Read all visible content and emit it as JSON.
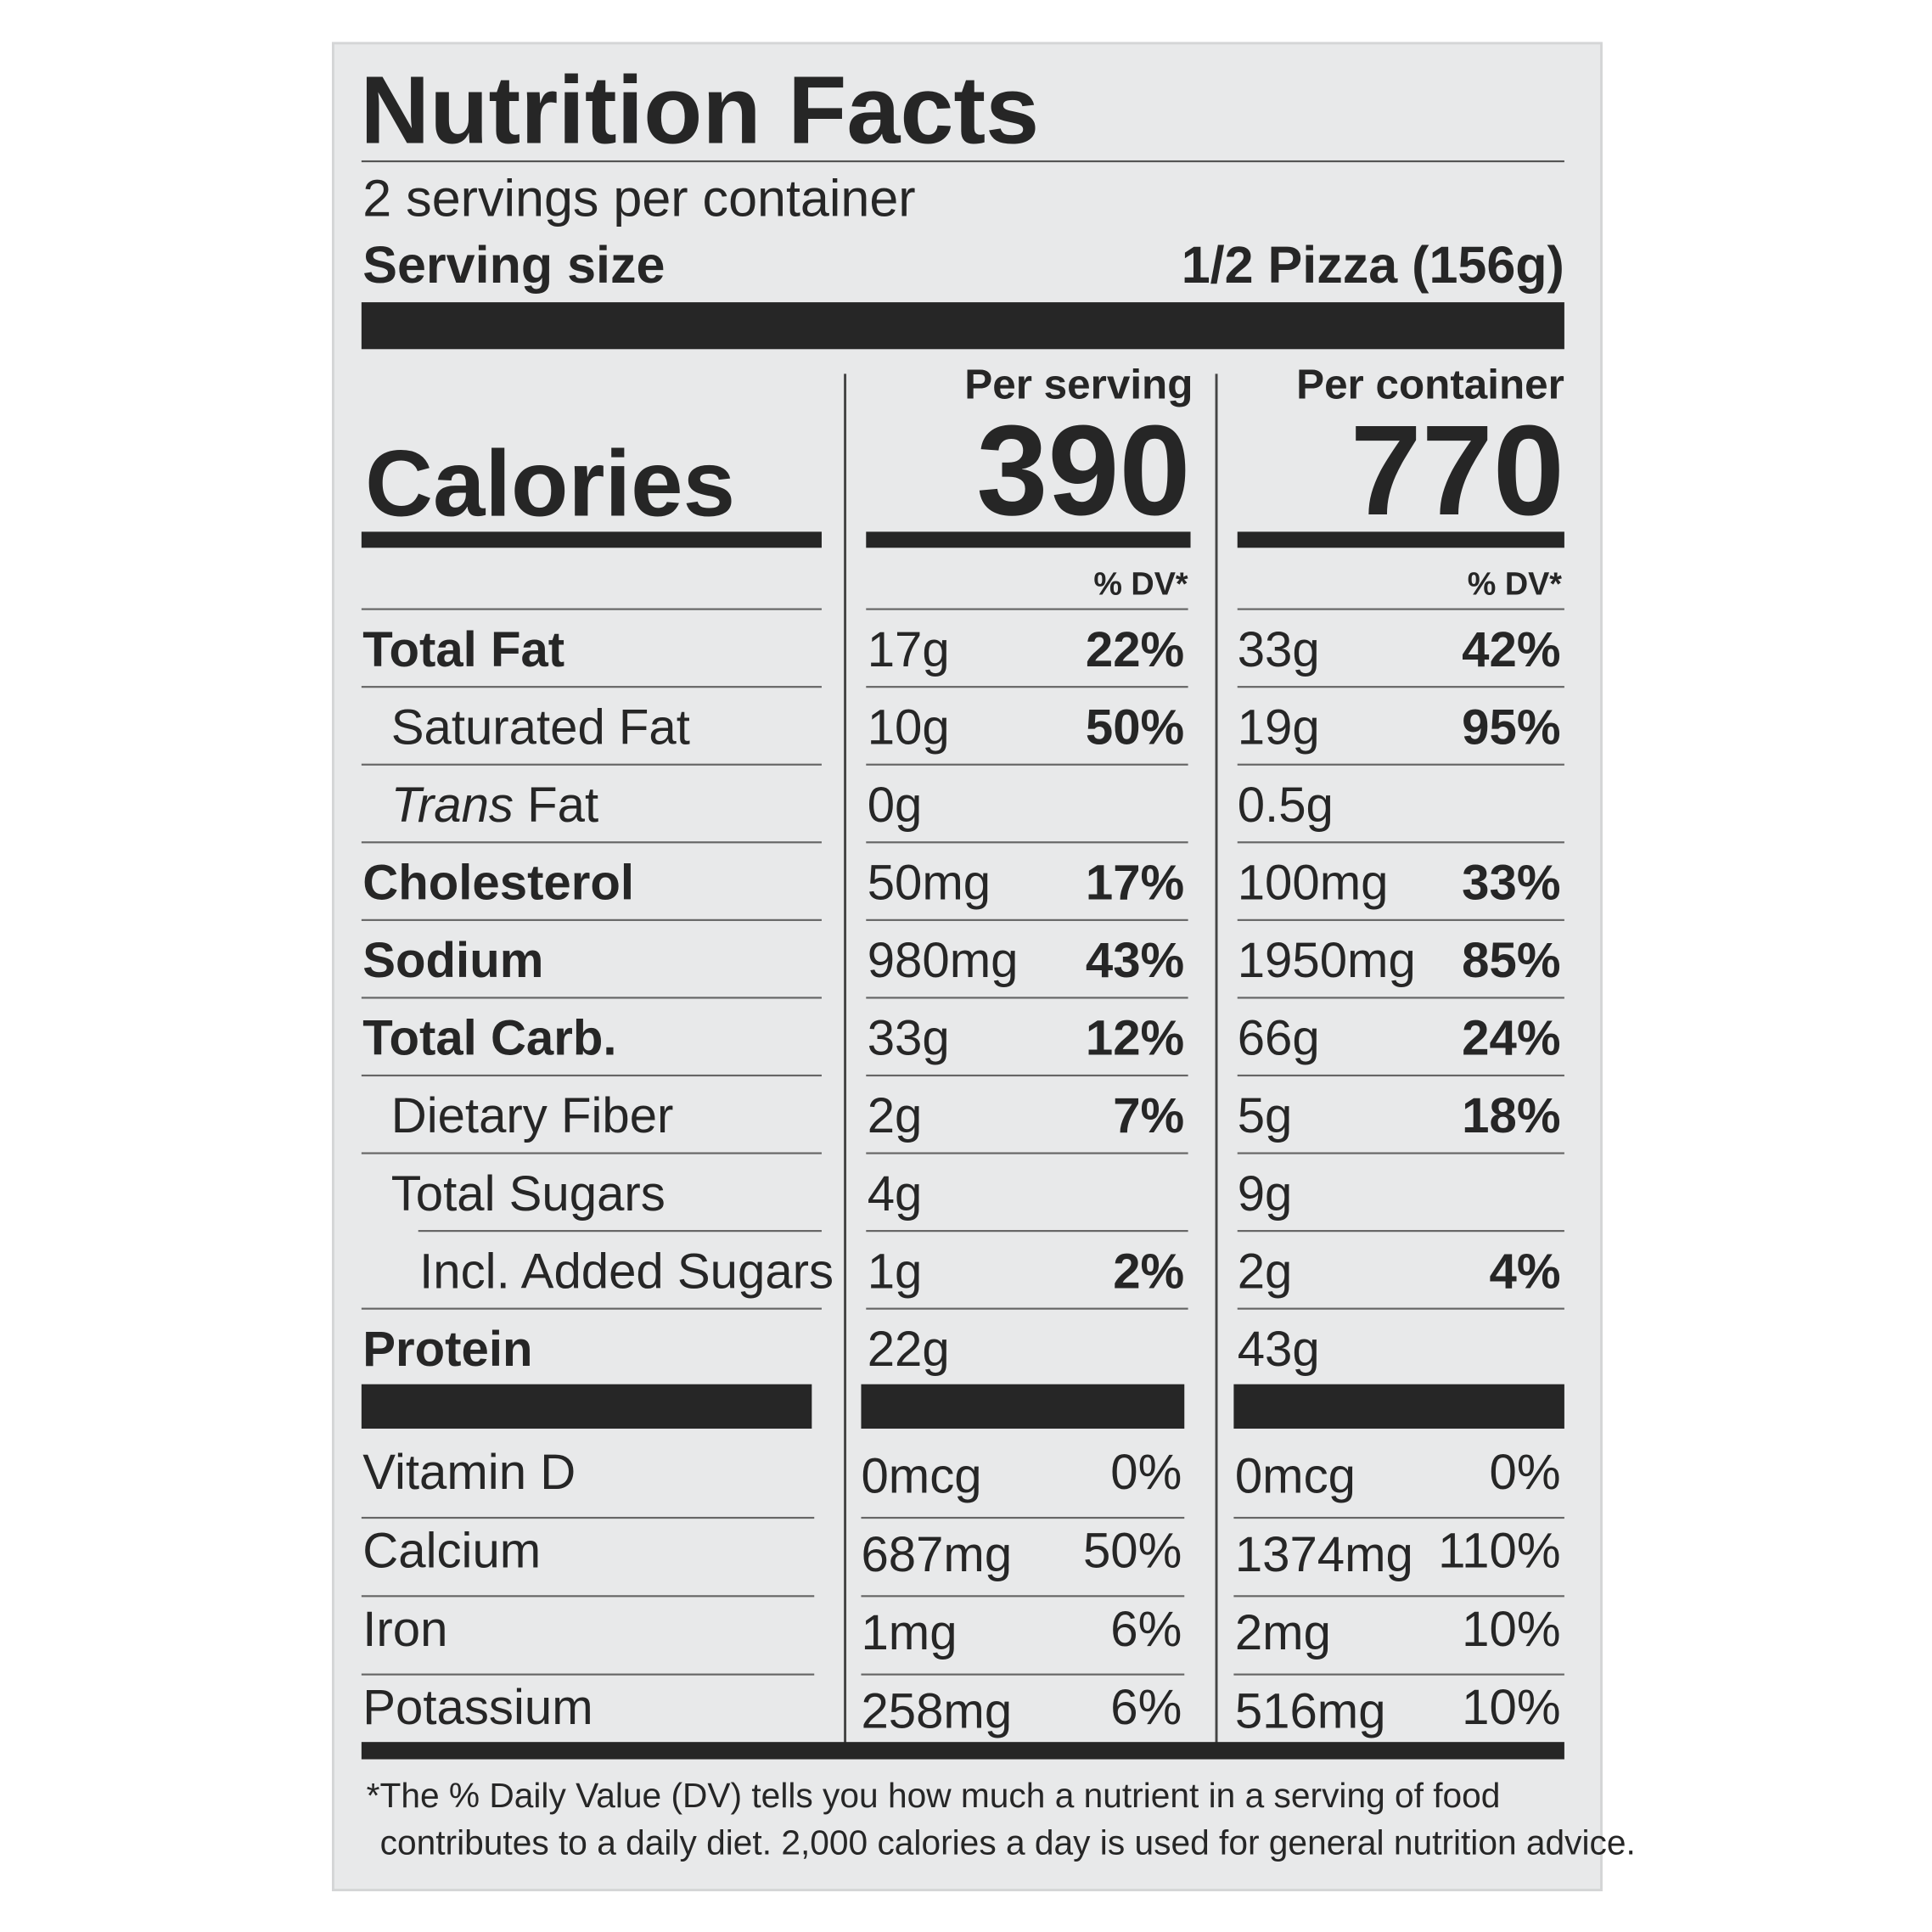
{
  "title": "Nutrition Facts",
  "servings": "2 servings per container",
  "serving_size": {
    "label": "Serving size",
    "value": "1/2 Pizza (156g)"
  },
  "columns": [
    "Per serving",
    "Per container"
  ],
  "calories": {
    "label": "Calories",
    "values": [
      "390",
      "770"
    ]
  },
  "dv_header": "% DV*",
  "rows": [
    {
      "label": "Total Fat",
      "serving": [
        "17g",
        "22%"
      ],
      "container": [
        "33g",
        "42%"
      ]
    },
    {
      "label": "Saturated Fat",
      "serving": [
        "10g",
        "50%"
      ],
      "container": [
        "19g",
        "95%"
      ]
    },
    {
      "label_italic": "Trans",
      "label": " Fat",
      "serving": [
        "0g",
        null
      ],
      "container": [
        "0.5g",
        null
      ]
    },
    {
      "label": "Cholesterol",
      "serving": [
        "50mg",
        "17%"
      ],
      "container": [
        "100mg",
        "33%"
      ]
    },
    {
      "label": "Sodium",
      "serving": [
        "980mg",
        "43%"
      ],
      "container": [
        "1950mg",
        "85%"
      ]
    },
    {
      "label": "Total Carb.",
      "serving": [
        "33g",
        "12%"
      ],
      "container": [
        "66g",
        "24%"
      ]
    },
    {
      "label": "Dietary Fiber",
      "serving": [
        "2g",
        "7%"
      ],
      "container": [
        "5g",
        "18%"
      ]
    },
    {
      "label": "Total Sugars",
      "serving": [
        "4g",
        null
      ],
      "container": [
        "9g",
        null
      ]
    },
    {
      "label": "Incl. Added Sugars",
      "serving": [
        "1g",
        "2%"
      ],
      "container": [
        "2g",
        "4%"
      ]
    },
    {
      "label": "Protein",
      "serving": [
        "22g",
        null
      ],
      "container": [
        "43g",
        null
      ]
    }
  ],
  "vitamins": [
    {
      "label": "Vitamin D",
      "serving": [
        "0mcg",
        "0%"
      ],
      "container": [
        "0mcg",
        "0%"
      ]
    },
    {
      "label": "Calcium",
      "serving": [
        "687mg",
        "50%"
      ],
      "container": [
        "1374mg",
        "110%"
      ]
    },
    {
      "label": "Iron",
      "serving": [
        "1mg",
        "6%"
      ],
      "container": [
        "2mg",
        "10%"
      ]
    },
    {
      "label": "Potassium",
      "serving": [
        "258mg",
        "6%"
      ],
      "container": [
        "516mg",
        "10%"
      ]
    }
  ],
  "footnote": [
    "*The % Daily Value (DV) tells you how much a nutrient in a serving of food",
    "contributes to a daily diet. 2,000 calories a day is used for general nutrition advice."
  ]
}
